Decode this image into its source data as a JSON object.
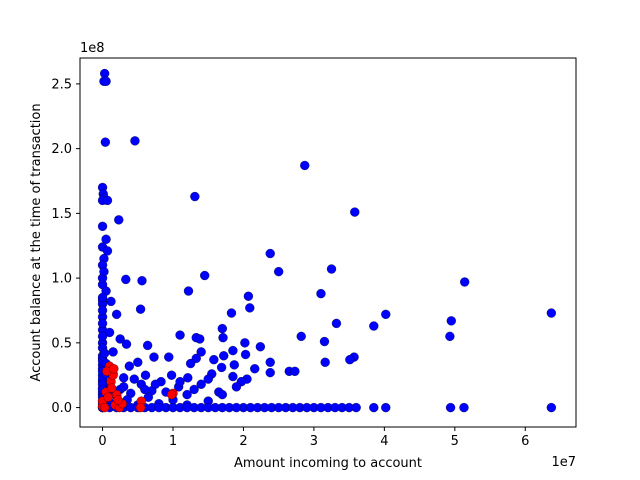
{
  "chart_data": {
    "type": "scatter",
    "title": "",
    "xlabel": "Amount incoming to account",
    "ylabel": "Account balance at the time of transaction",
    "x_offset_label": "1e7",
    "y_offset_label": "1e8",
    "x_multiplier": 10000000,
    "y_multiplier": 100000000,
    "xlim": [
      -3200000,
      67200000
    ],
    "ylim": [
      -15000000,
      270000000
    ],
    "xticks": [
      0,
      10000000,
      20000000,
      30000000,
      40000000,
      50000000,
      60000000
    ],
    "xtick_labels": [
      "0",
      "1",
      "2",
      "3",
      "4",
      "5",
      "6"
    ],
    "yticks": [
      0,
      50000000,
      100000000,
      150000000,
      200000000,
      250000000
    ],
    "ytick_labels": [
      "0.0",
      "0.5",
      "1.0",
      "1.5",
      "2.0",
      "2.5"
    ],
    "grid": false,
    "legend": "none",
    "series": [
      {
        "color": "#0000ff",
        "edgecolor": "#000000",
        "points": [
          [
            0,
            0
          ],
          [
            300000,
            258000000
          ],
          [
            200000,
            252000000
          ],
          [
            500000,
            252000000
          ],
          [
            400000,
            205000000
          ],
          [
            4600000,
            206000000
          ],
          [
            28700000,
            187000000
          ],
          [
            0,
            170000000
          ],
          [
            100000,
            165000000
          ],
          [
            200000,
            162000000
          ],
          [
            0,
            160000000
          ],
          [
            700000,
            160000000
          ],
          [
            13100000,
            163000000
          ],
          [
            35800000,
            151000000
          ],
          [
            2300000,
            145000000
          ],
          [
            500000,
            130000000
          ],
          [
            0,
            124000000
          ],
          [
            700000,
            121000000
          ],
          [
            200000,
            115000000
          ],
          [
            23800000,
            119000000
          ],
          [
            0,
            110000000
          ],
          [
            32500000,
            107000000
          ],
          [
            25000000,
            105000000
          ],
          [
            14500000,
            102000000
          ],
          [
            3300000,
            99000000
          ],
          [
            5600000,
            98000000
          ],
          [
            51400000,
            97000000
          ],
          [
            0,
            95000000
          ],
          [
            500000,
            90000000
          ],
          [
            12200000,
            90000000
          ],
          [
            31000000,
            88000000
          ],
          [
            20700000,
            86000000
          ],
          [
            0,
            83000000
          ],
          [
            1200000,
            82000000
          ],
          [
            0,
            80000000
          ],
          [
            20900000,
            77000000
          ],
          [
            5400000,
            76000000
          ],
          [
            18300000,
            73000000
          ],
          [
            63700000,
            73000000
          ],
          [
            40200000,
            72000000
          ],
          [
            2000000,
            72000000
          ],
          [
            0,
            70000000
          ],
          [
            49500000,
            67000000
          ],
          [
            33200000,
            65000000
          ],
          [
            38500000,
            63000000
          ],
          [
            17000000,
            61000000
          ],
          [
            0,
            60000000
          ],
          [
            1000000,
            58000000
          ],
          [
            11000000,
            56000000
          ],
          [
            28200000,
            55000000
          ],
          [
            49300000,
            55000000
          ],
          [
            13300000,
            54000000
          ],
          [
            17100000,
            54000000
          ],
          [
            2500000,
            53000000
          ],
          [
            13800000,
            53000000
          ],
          [
            31500000,
            51000000
          ],
          [
            0,
            50000000
          ],
          [
            20200000,
            50000000
          ],
          [
            3400000,
            49000000
          ],
          [
            6400000,
            48000000
          ],
          [
            22400000,
            47000000
          ],
          [
            0,
            46000000
          ],
          [
            18500000,
            44000000
          ],
          [
            1500000,
            43000000
          ],
          [
            14000000,
            43000000
          ],
          [
            17200000,
            40000000
          ],
          [
            20300000,
            41000000
          ],
          [
            7300000,
            39000000
          ],
          [
            9400000,
            39000000
          ],
          [
            35700000,
            39000000
          ],
          [
            0,
            38000000
          ],
          [
            13300000,
            38000000
          ],
          [
            15800000,
            37000000
          ],
          [
            35100000,
            37000000
          ],
          [
            23800000,
            35000000
          ],
          [
            31600000,
            35000000
          ],
          [
            5000000,
            35000000
          ],
          [
            12500000,
            34000000
          ],
          [
            0,
            33000000
          ],
          [
            18700000,
            33000000
          ],
          [
            3800000,
            32000000
          ],
          [
            16900000,
            31000000
          ],
          [
            21600000,
            30000000
          ],
          [
            0,
            30000000
          ],
          [
            26500000,
            28000000
          ],
          [
            27300000,
            28000000
          ],
          [
            23800000,
            27000000
          ],
          [
            15500000,
            26000000
          ],
          [
            9800000,
            25000000
          ],
          [
            6100000,
            25000000
          ],
          [
            0,
            25000000
          ],
          [
            18500000,
            24000000
          ],
          [
            12100000,
            23000000
          ],
          [
            3000000,
            23000000
          ],
          [
            20500000,
            22000000
          ],
          [
            19700000,
            20000000
          ],
          [
            0,
            20000000
          ],
          [
            8300000,
            20000000
          ],
          [
            14000000,
            18000000
          ],
          [
            5500000,
            18000000
          ],
          [
            1000000,
            18000000
          ],
          [
            10800000,
            16000000
          ],
          [
            0,
            15000000
          ],
          [
            2500000,
            14000000
          ],
          [
            7000000,
            13000000
          ],
          [
            0,
            12000000
          ],
          [
            16500000,
            12000000
          ],
          [
            4000000,
            11000000
          ],
          [
            0,
            10000000
          ],
          [
            12000000,
            10000000
          ],
          [
            2000000,
            9000000
          ],
          [
            6500000,
            8000000
          ],
          [
            0,
            8000000
          ],
          [
            10000000,
            6000000
          ],
          [
            3500000,
            6000000
          ],
          [
            0,
            5000000
          ],
          [
            15000000,
            5000000
          ],
          [
            1000000,
            4000000
          ],
          [
            8000000,
            3000000
          ],
          [
            0,
            3000000
          ],
          [
            5000000,
            2000000
          ],
          [
            12000000,
            2000000
          ],
          [
            0,
            1000000
          ],
          [
            2000000,
            1000000
          ],
          [
            20000000,
            0
          ],
          [
            0,
            0
          ],
          [
            1000000,
            0
          ],
          [
            2000000,
            0
          ],
          [
            3000000,
            0
          ],
          [
            4000000,
            0
          ],
          [
            5000000,
            0
          ],
          [
            6000000,
            0
          ],
          [
            7000000,
            0
          ],
          [
            8000000,
            0
          ],
          [
            9000000,
            0
          ],
          [
            10000000,
            0
          ],
          [
            11000000,
            0
          ],
          [
            12000000,
            0
          ],
          [
            13000000,
            0
          ],
          [
            14000000,
            0
          ],
          [
            15000000,
            0
          ],
          [
            16000000,
            0
          ],
          [
            17000000,
            0
          ],
          [
            18000000,
            0
          ],
          [
            19000000,
            0
          ],
          [
            21000000,
            0
          ],
          [
            22000000,
            0
          ],
          [
            23000000,
            0
          ],
          [
            24000000,
            0
          ],
          [
            25000000,
            0
          ],
          [
            26000000,
            0
          ],
          [
            27000000,
            0
          ],
          [
            28000000,
            0
          ],
          [
            29000000,
            0
          ],
          [
            30000000,
            0
          ],
          [
            31000000,
            0
          ],
          [
            32000000,
            0
          ],
          [
            33000000,
            0
          ],
          [
            34000000,
            0
          ],
          [
            35000000,
            0
          ],
          [
            36000000,
            0
          ],
          [
            38500000,
            0
          ],
          [
            40200000,
            0
          ],
          [
            49400000,
            0
          ],
          [
            51300000,
            0
          ],
          [
            63700000,
            0
          ],
          [
            0,
            40000000
          ],
          [
            0,
            36000000
          ],
          [
            0,
            28000000
          ],
          [
            0,
            22000000
          ],
          [
            0,
            18000000
          ],
          [
            0,
            14000000
          ],
          [
            500000,
            26000000
          ],
          [
            500000,
            34000000
          ],
          [
            1500000,
            26000000
          ],
          [
            1500000,
            12000000
          ],
          [
            3000000,
            16000000
          ],
          [
            4500000,
            22000000
          ],
          [
            6000000,
            14000000
          ],
          [
            7500000,
            18000000
          ],
          [
            9000000,
            12000000
          ],
          [
            11000000,
            20000000
          ],
          [
            13000000,
            14000000
          ],
          [
            15000000,
            22000000
          ],
          [
            17000000,
            10000000
          ],
          [
            19000000,
            16000000
          ],
          [
            0,
            55000000
          ],
          [
            0,
            65000000
          ],
          [
            0,
            75000000
          ],
          [
            0,
            85000000
          ],
          [
            0,
            100000000
          ],
          [
            200000,
            105000000
          ],
          [
            0,
            140000000
          ],
          [
            300000,
            42000000
          ],
          [
            800000,
            30000000
          ]
        ]
      },
      {
        "color": "#ff0000",
        "edgecolor": "#000000",
        "points": [
          [
            0,
            1000000
          ],
          [
            0,
            5000000
          ],
          [
            500000,
            12000000
          ],
          [
            1200000,
            20000000
          ],
          [
            1000000,
            32000000
          ],
          [
            1500000,
            25000000
          ],
          [
            1800000,
            2000000
          ],
          [
            2000000,
            10000000
          ],
          [
            2400000,
            0
          ],
          [
            2800000,
            3000000
          ],
          [
            5500000,
            5000000
          ],
          [
            5400000,
            0
          ],
          [
            10000000,
            11000000
          ],
          [
            9800000,
            10000000
          ],
          [
            600000,
            28000000
          ],
          [
            1300000,
            15000000
          ],
          [
            300000,
            0
          ],
          [
            2200000,
            6000000
          ],
          [
            800000,
            8000000
          ],
          [
            1600000,
            30000000
          ]
        ]
      }
    ]
  }
}
